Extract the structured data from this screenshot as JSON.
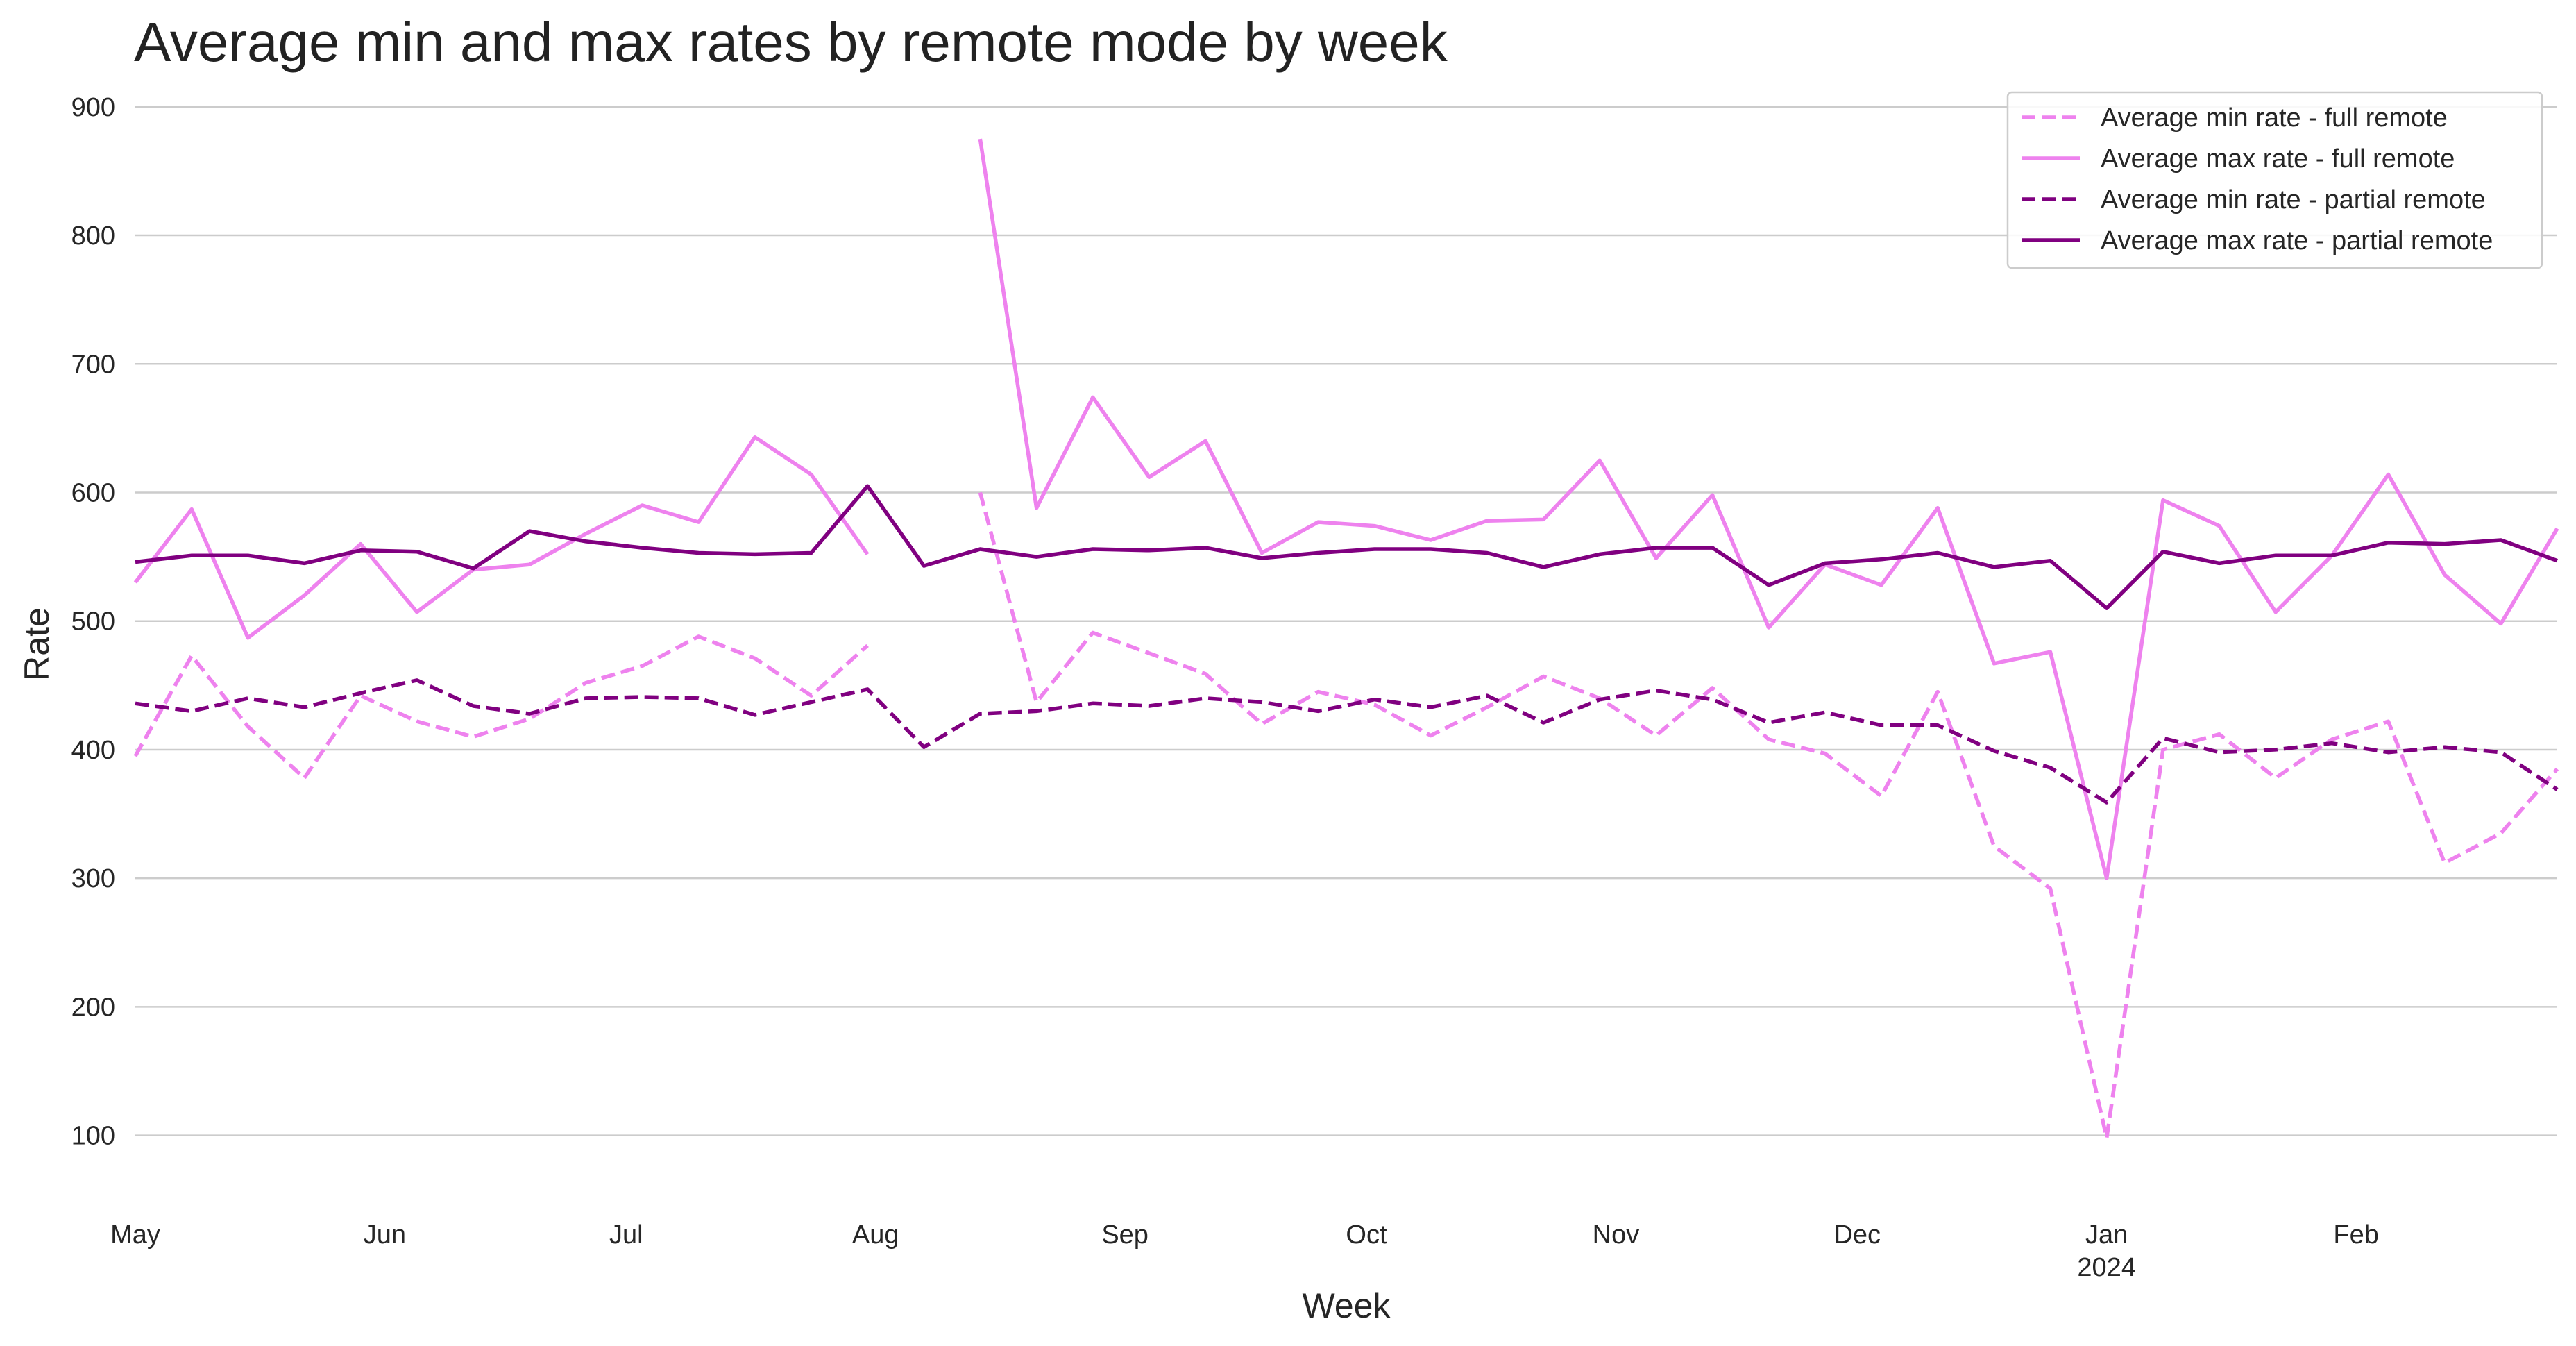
{
  "chart_data": {
    "type": "line",
    "title": "Average min and max rates by remote mode by week",
    "xlabel": "Week",
    "ylabel": "Rate",
    "ylim": [
      55,
      915
    ],
    "yticks": [
      100,
      200,
      300,
      400,
      500,
      600,
      700,
      800,
      900
    ],
    "xlim": [
      "2023-05-01",
      "2024-02-26"
    ],
    "xticks": [
      {
        "date": "2023-05-01",
        "label": "May",
        "sublabel": ""
      },
      {
        "date": "2023-06-01",
        "label": "Jun",
        "sublabel": ""
      },
      {
        "date": "2023-07-01",
        "label": "Jul",
        "sublabel": ""
      },
      {
        "date": "2023-08-01",
        "label": "Aug",
        "sublabel": ""
      },
      {
        "date": "2023-09-01",
        "label": "Sep",
        "sublabel": ""
      },
      {
        "date": "2023-10-01",
        "label": "Oct",
        "sublabel": ""
      },
      {
        "date": "2023-11-01",
        "label": "Nov",
        "sublabel": ""
      },
      {
        "date": "2023-12-01",
        "label": "Dec",
        "sublabel": ""
      },
      {
        "date": "2024-01-01",
        "label": "Jan",
        "sublabel": "2024"
      },
      {
        "date": "2024-02-01",
        "label": "Feb",
        "sublabel": ""
      }
    ],
    "grid": true,
    "legend_position": "top-right",
    "x": [
      "2023-05-01",
      "2023-05-08",
      "2023-05-15",
      "2023-05-22",
      "2023-05-29",
      "2023-06-05",
      "2023-06-12",
      "2023-06-19",
      "2023-06-26",
      "2023-07-03",
      "2023-07-10",
      "2023-07-17",
      "2023-07-24",
      "2023-07-31",
      "2023-08-07",
      "2023-08-14",
      "2023-08-21",
      "2023-08-28",
      "2023-09-04",
      "2023-09-11",
      "2023-09-18",
      "2023-09-25",
      "2023-10-02",
      "2023-10-09",
      "2023-10-16",
      "2023-10-23",
      "2023-10-30",
      "2023-11-06",
      "2023-11-13",
      "2023-11-20",
      "2023-11-27",
      "2023-12-04",
      "2023-12-11",
      "2023-12-18",
      "2023-12-25",
      "2024-01-01",
      "2024-01-08",
      "2024-01-15",
      "2024-01-22",
      "2024-01-29",
      "2024-02-05",
      "2024-02-12",
      "2024-02-19",
      "2024-02-26"
    ],
    "series": [
      {
        "name": "Average min rate - full remote",
        "color": "#ee82ee",
        "dashed": true,
        "values": [
          395,
          473,
          418,
          378,
          442,
          422,
          410,
          424,
          452,
          465,
          488,
          471,
          442,
          481,
          null,
          600,
          437,
          491,
          475,
          459,
          420,
          445,
          435,
          411,
          433,
          457,
          440,
          411,
          448,
          408,
          397,
          364,
          445,
          325,
          292,
          98,
          400,
          412,
          378,
          408,
          422,
          312,
          335,
          385
        ]
      },
      {
        "name": "Average max rate - full remote",
        "color": "#ee82ee",
        "dashed": false,
        "values": [
          530,
          587,
          487,
          520,
          560,
          507,
          540,
          544,
          568,
          590,
          577,
          643,
          614,
          552,
          null,
          875,
          588,
          674,
          612,
          640,
          553,
          577,
          574,
          563,
          578,
          579,
          625,
          549,
          598,
          495,
          544,
          528,
          588,
          467,
          476,
          300,
          594,
          574,
          507,
          551,
          614,
          536,
          498,
          572
        ]
      },
      {
        "name": "Average min rate - partial remote",
        "color": "#800080",
        "dashed": true,
        "values": [
          436,
          430,
          440,
          433,
          444,
          454,
          434,
          428,
          440,
          441,
          440,
          427,
          437,
          447,
          402,
          428,
          430,
          436,
          434,
          440,
          437,
          430,
          439,
          433,
          442,
          421,
          439,
          446,
          439,
          421,
          429,
          419,
          419,
          399,
          386,
          359,
          409,
          398,
          400,
          405,
          398,
          402,
          398,
          369
        ]
      },
      {
        "name": "Average max rate - partial remote",
        "color": "#800080",
        "dashed": false,
        "values": [
          546,
          551,
          551,
          545,
          555,
          554,
          541,
          570,
          562,
          557,
          553,
          552,
          553,
          605,
          543,
          556,
          550,
          556,
          555,
          557,
          549,
          553,
          556,
          556,
          553,
          542,
          552,
          557,
          557,
          528,
          545,
          548,
          553,
          542,
          547,
          510,
          554,
          545,
          551,
          551,
          561,
          560,
          563,
          547
        ]
      }
    ]
  }
}
